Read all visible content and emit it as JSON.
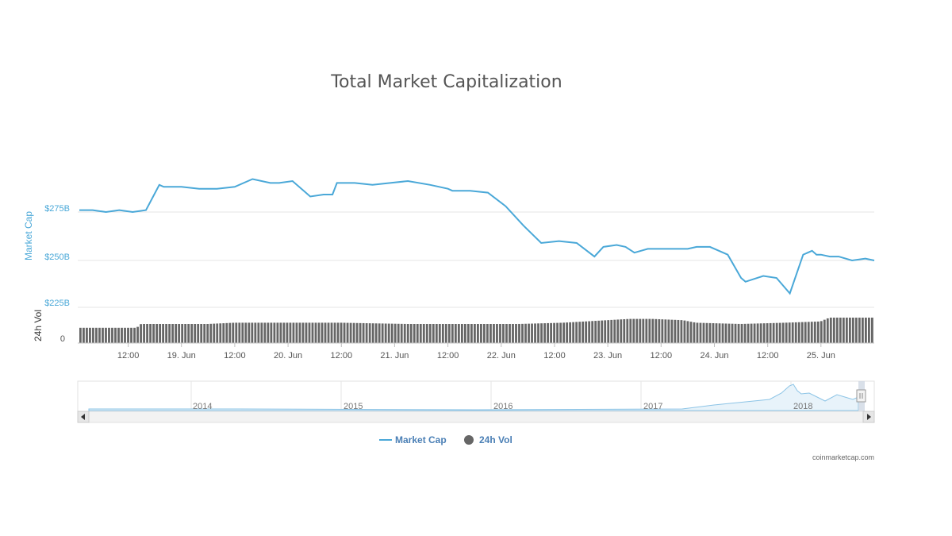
{
  "chart_data": {
    "type": "line",
    "title": "Total Market Capitalization",
    "ylabel": "Market Cap",
    "vol_label": "24h Vol",
    "y_ticks": [
      "$275B",
      "$250B",
      "$225B"
    ],
    "y_tick_values": [
      275,
      250,
      225
    ],
    "vol_tick_label": "0",
    "ylim": [
      220,
      300
    ],
    "x_tick_labels": [
      "12:00",
      "19. Jun",
      "12:00",
      "20. Jun",
      "12:00",
      "21. Jun",
      "12:00",
      "22. Jun",
      "12:00",
      "23. Jun",
      "12:00",
      "24. Jun",
      "12:00",
      "25. Jun"
    ],
    "x_tick_hours": [
      12,
      24,
      36,
      48,
      60,
      72,
      84,
      96,
      108,
      120,
      132,
      144,
      156,
      168
    ],
    "x_hour_range": [
      1,
      180
    ],
    "series": [
      {
        "name": "Market Cap",
        "x_hours": [
          1,
          4,
          7,
          10,
          13,
          16,
          19,
          20,
          24,
          28,
          32,
          36,
          40,
          44,
          46,
          49,
          53,
          56,
          58,
          59,
          63,
          67,
          71,
          75,
          80,
          84,
          85,
          89,
          93,
          97,
          101,
          105,
          109,
          113,
          117,
          119,
          122,
          124,
          126,
          129,
          132,
          135,
          138,
          140,
          143,
          147,
          150,
          151,
          155,
          158,
          161,
          164,
          166,
          167,
          168,
          170,
          172,
          175,
          178,
          180
        ],
        "values": [
          276,
          276,
          275,
          276,
          275,
          276,
          289,
          288,
          288,
          287,
          287,
          288,
          292,
          290,
          290,
          291,
          283,
          284,
          284,
          290,
          290,
          289,
          290,
          291,
          289,
          287,
          286,
          286,
          285,
          278,
          268,
          259,
          260,
          259,
          252,
          257,
          258,
          257,
          254,
          256,
          256,
          256,
          256,
          257,
          257,
          253,
          241,
          239,
          242,
          241,
          233,
          253,
          255,
          253,
          253,
          252,
          252,
          250,
          251,
          250
        ]
      },
      {
        "name": "24h Vol",
        "x_hours": [
          1,
          10,
          14,
          15,
          25,
          30,
          36,
          45,
          50,
          60,
          75,
          85,
          100,
          110,
          120,
          125,
          130,
          137,
          140,
          150,
          160,
          168,
          170,
          180
        ],
        "values": [
          12,
          12,
          12,
          15,
          15,
          15,
          16,
          16,
          16,
          16,
          15,
          15,
          15,
          16,
          18,
          19,
          19,
          18,
          16,
          15,
          16,
          17,
          20,
          20
        ]
      }
    ],
    "navigator": {
      "years": [
        "2014",
        "2015",
        "2016",
        "2017",
        "2018"
      ]
    },
    "legend": [
      {
        "label": "Market Cap",
        "color": "#4aa8d8"
      },
      {
        "label": "24h Vol",
        "color": "#666666"
      }
    ],
    "legend_position": "bottom-center",
    "credit": "coinmarketcap.com",
    "colors": {
      "line": "#4aa8d8",
      "volume": "#666666",
      "navigator_fill": "#e8f3fa"
    }
  }
}
